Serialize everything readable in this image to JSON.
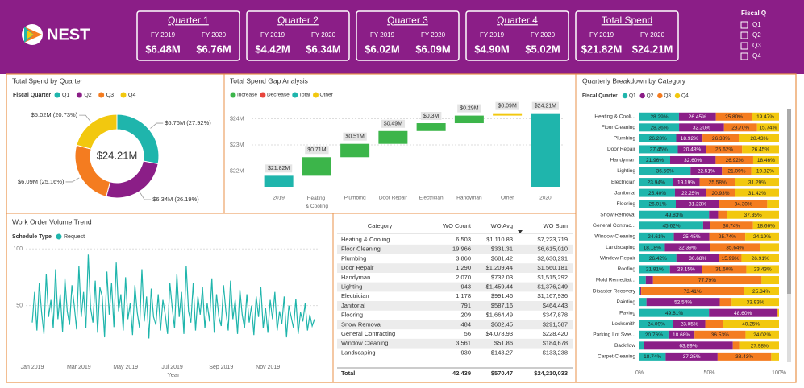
{
  "header": {
    "logo": "NEST",
    "cards": [
      {
        "title": "Quarter 1",
        "labels": [
          "FY 2019",
          "FY 2020"
        ],
        "values": [
          "$6.48M",
          "$6.76M"
        ]
      },
      {
        "title": "Quarter 2",
        "labels": [
          "FY 2019",
          "FY 2020"
        ],
        "values": [
          "$4.42M",
          "$6.34M"
        ]
      },
      {
        "title": "Quarter 3",
        "labels": [
          "FY 2019",
          "FY 2020"
        ],
        "values": [
          "$6.02M",
          "$6.09M"
        ]
      },
      {
        "title": "Quarter 4",
        "labels": [
          "FY 2019",
          "FY 2020"
        ],
        "values": [
          "$4.90M",
          "$5.02M"
        ]
      },
      {
        "title": "Total Spend",
        "labels": [
          "FY 2019",
          "FY 2020"
        ],
        "values": [
          "$21.82M",
          "$24.21M"
        ]
      }
    ]
  },
  "slicer": {
    "title": "Fiscal Q",
    "options": [
      "Q1",
      "Q2",
      "Q3",
      "Q4"
    ]
  },
  "chart_data": [
    {
      "type": "pie",
      "title": "Total Spend by Quarter",
      "legend_title": "Fiscal Quarter",
      "donut": true,
      "center_label": "$24.21M",
      "categories": [
        "Q1",
        "Q2",
        "Q3",
        "Q4"
      ],
      "values": [
        6.76,
        6.34,
        6.09,
        5.02
      ],
      "value_labels": [
        "$6.76M (27.92%)",
        "$6.34M (26.19%)",
        "$6.09M (25.16%)",
        "$5.02M (20.73%)"
      ],
      "colors": [
        "#1fb5ac",
        "#8b1e87",
        "#f47c20",
        "#f2c80f"
      ]
    },
    {
      "type": "waterfall",
      "title": "Total Spend Gap Analysis",
      "legend": [
        {
          "name": "Increase",
          "color": "#3cb54a"
        },
        {
          "name": "Decrease",
          "color": "#e8453c"
        },
        {
          "name": "Total",
          "color": "#1fb5ac"
        },
        {
          "name": "Other",
          "color": "#f2c80f"
        }
      ],
      "categories": [
        "2019",
        "Heating & Cooling",
        "Plumbing",
        "Door Repair",
        "Electrician",
        "Handyman",
        "Other",
        "2020"
      ],
      "values": [
        21.82,
        0.71,
        0.51,
        0.49,
        0.3,
        0.29,
        0.09,
        24.21
      ],
      "value_labels": [
        "$21.82M",
        "$0.71M",
        "$0.51M",
        "$0.49M",
        "$0.3M",
        "$0.29M",
        "$0.09M",
        "$24.21M"
      ],
      "measure": [
        "total",
        "increase",
        "increase",
        "increase",
        "increase",
        "increase",
        "increase",
        "total"
      ],
      "colors": [
        "#1fb5ac",
        "#3cb54a",
        "#3cb54a",
        "#3cb54a",
        "#3cb54a",
        "#3cb54a",
        "#f2c80f",
        "#1fb5ac"
      ],
      "ylim": [
        21.4,
        24.6
      ],
      "yticks": [
        {
          "value": 22,
          "label": "$22M"
        },
        {
          "value": 23,
          "label": "$23M"
        },
        {
          "value": 24,
          "label": "$24M"
        }
      ],
      "grid": true
    },
    {
      "type": "line",
      "title": "Work Order Volume Trend",
      "legend_title": "Schedule Type",
      "xlabel": "Year",
      "series": [
        {
          "name": "Request",
          "color": "#1fb5ac",
          "values": [
            35,
            62,
            28,
            70,
            44,
            25,
            78,
            40,
            55,
            30,
            82,
            38,
            60,
            27,
            74,
            45,
            33,
            68,
            50,
            29,
            85,
            40,
            62,
            30,
            95,
            48,
            35,
            72,
            26,
            66,
            58,
            22,
            80,
            42,
            70,
            31,
            88,
            45,
            60,
            28,
            75,
            38,
            52,
            24,
            68,
            44,
            30,
            82,
            36,
            58,
            21,
            65,
            40,
            33,
            60,
            28,
            55,
            42,
            25,
            70,
            48,
            30,
            78,
            40,
            62,
            25,
            85,
            45,
            35,
            70,
            28,
            58,
            42,
            66,
            30,
            52,
            36,
            74,
            26,
            60,
            40,
            32,
            68,
            45,
            28,
            72,
            38,
            55,
            25,
            64,
            42,
            30,
            60,
            35,
            50,
            24,
            58,
            40,
            66,
            30,
            48,
            26,
            55,
            38,
            62,
            28,
            45,
            34,
            58,
            22,
            50,
            40,
            30,
            56,
            25,
            44,
            36,
            52,
            28,
            42,
            32,
            38
          ]
        }
      ],
      "xlim": [
        0,
        121
      ],
      "xticks": [
        {
          "value": 0,
          "label": "Jan 2019"
        },
        {
          "value": 20,
          "label": "Mar 2019"
        },
        {
          "value": 40,
          "label": "May 2019"
        },
        {
          "value": 60,
          "label": "Jul 2019"
        },
        {
          "value": 81,
          "label": "Sep 2019"
        },
        {
          "value": 101,
          "label": "Nov 2019"
        }
      ],
      "ylim": [
        0,
        103
      ],
      "yticks": [
        50,
        100
      ],
      "grid": true
    },
    {
      "type": "stacked_bar_h",
      "title": "Quarterly Breakdown by Category",
      "legend_title": "Fiscal Quarter",
      "categories": [
        "Heating & Cooli...",
        "Floor Cleaning",
        "Plumbing",
        "Door Repair",
        "Handyman",
        "Lighting",
        "Electrician",
        "Janitorial",
        "Flooring",
        "Snow Removal",
        "General Contrac...",
        "Window Cleaning",
        "Landscaping",
        "Window Repair",
        "Roofing",
        "Mold Remediat...",
        "Disaster Recovery",
        "Painting",
        "Paving",
        "Locksmith",
        "Parking Lot Swe...",
        "Backflow",
        "Carpet Cleaning"
      ],
      "series": [
        {
          "name": "Q1",
          "color": "#1fb5ac",
          "values": [
            28.29,
            28.36,
            26.28,
            27.45,
            21.96,
            36.59,
            23.94,
            25.4,
            26.01,
            49.83,
            45.62,
            24.61,
            18.18,
            26.42,
            21.81,
            4.5,
            0.6,
            5,
            49.81,
            24.09,
            20.76,
            3,
            18.74
          ],
          "value_labels": [
            "28.29%",
            "28.36%",
            "26.28%",
            "27.45%",
            "21.96%",
            "36.59%",
            "23.94%",
            "25.40%",
            "26.01%",
            "49.83%",
            "45.62%",
            "24.61%",
            "18.18%",
            "26.42%",
            "21.81%",
            null,
            null,
            null,
            "49.81%",
            "24.09%",
            "20.76%",
            null,
            "18.74%"
          ]
        },
        {
          "name": "Q2",
          "color": "#8b1e87",
          "values": [
            26.45,
            32.2,
            18.92,
            20.48,
            32.6,
            22.51,
            19.19,
            22.25,
            31.23,
            6.5,
            4.98,
            25.45,
            32.39,
            30.68,
            23.15,
            5.2,
            0.65,
            52.54,
            48.6,
            23.05,
            18.68,
            63.89,
            37.25
          ],
          "value_labels": [
            "26.45%",
            "32.20%",
            "18.92%",
            "20.48%",
            "32.60%",
            "22.51%",
            "19.19%",
            "22.25%",
            "31.23%",
            null,
            null,
            "25.45%",
            "32.39%",
            "30.68%",
            "23.15%",
            null,
            null,
            "52.54%",
            "48.60%",
            "23.05%",
            "18.68%",
            "63.89%",
            "37.25%"
          ]
        },
        {
          "name": "Q3",
          "color": "#f47c20",
          "values": [
            25.8,
            23.7,
            26.38,
            25.62,
            26.92,
            21.09,
            25.58,
            20.93,
            34.3,
            6.32,
            30.74,
            25.74,
            35.64,
            15.99,
            31.6,
            77.79,
            73.41,
            8.53,
            0.8,
            12.61,
            36.53,
            5.13,
            38.43
          ],
          "value_labels": [
            "25.80%",
            "23.70%",
            "26.38%",
            "25.62%",
            "26.92%",
            "21.09%",
            "25.58%",
            "20.93%",
            "34.30%",
            null,
            "30.74%",
            "25.74%",
            "35.64%",
            "15.99%",
            "31.60%",
            "77.79%",
            "73.41%",
            null,
            null,
            null,
            "36.53%",
            null,
            "38.43%"
          ]
        },
        {
          "name": "Q4",
          "color": "#f2c80f",
          "values": [
            19.47,
            15.74,
            28.43,
            26.45,
            18.46,
            19.82,
            31.29,
            31.42,
            8.46,
            37.35,
            18.66,
            24.19,
            13.79,
            26.91,
            23.43,
            12.51,
            25.34,
            33.93,
            0.79,
            40.25,
            24.02,
            27.98,
            5.58
          ],
          "value_labels": [
            "19.47%",
            "15.74%",
            "28.43%",
            "26.45%",
            "18.46%",
            "19.82%",
            "31.29%",
            "31.42%",
            null,
            "37.35%",
            "18.66%",
            "24.19%",
            null,
            "26.91%",
            "23.43%",
            null,
            "25.34%",
            "33.93%",
            null,
            "40.25%",
            "24.02%",
            "27.98%",
            null
          ]
        }
      ],
      "xlim": [
        0,
        100
      ],
      "xticks": [
        {
          "value": 0,
          "label": "0%"
        },
        {
          "value": 50,
          "label": "50%"
        },
        {
          "value": 100,
          "label": "100%"
        }
      ]
    }
  ],
  "table": {
    "columns": [
      "Category",
      "WO Count",
      "WO Avg",
      "WO Sum"
    ],
    "rows": [
      [
        "Heating & Cooling",
        "6,503",
        "$1,110.83",
        "$7,223,719"
      ],
      [
        "Floor Cleaning",
        "19,966",
        "$331.31",
        "$6,615,010"
      ],
      [
        "Plumbing",
        "3,860",
        "$681.42",
        "$2,630,291"
      ],
      [
        "Door Repair",
        "1,290",
        "$1,209.44",
        "$1,560,181"
      ],
      [
        "Handyman",
        "2,070",
        "$732.03",
        "$1,515,292"
      ],
      [
        "Lighting",
        "943",
        "$1,459.44",
        "$1,376,249"
      ],
      [
        "Electrician",
        "1,178",
        "$991.46",
        "$1,167,936"
      ],
      [
        "Janitorial",
        "791",
        "$587.16",
        "$464,443"
      ],
      [
        "Flooring",
        "209",
        "$1,664.49",
        "$347,878"
      ],
      [
        "Snow Removal",
        "484",
        "$602.45",
        "$291,587"
      ],
      [
        "General Contracting",
        "56",
        "$4,078.93",
        "$228,420"
      ],
      [
        "Window Cleaning",
        "3,561",
        "$51.86",
        "$184,678"
      ],
      [
        "Landscaping",
        "930",
        "$143.27",
        "$133,238"
      ]
    ],
    "total": [
      "Total",
      "42,439",
      "$570.47",
      "$24,210,033"
    ]
  }
}
